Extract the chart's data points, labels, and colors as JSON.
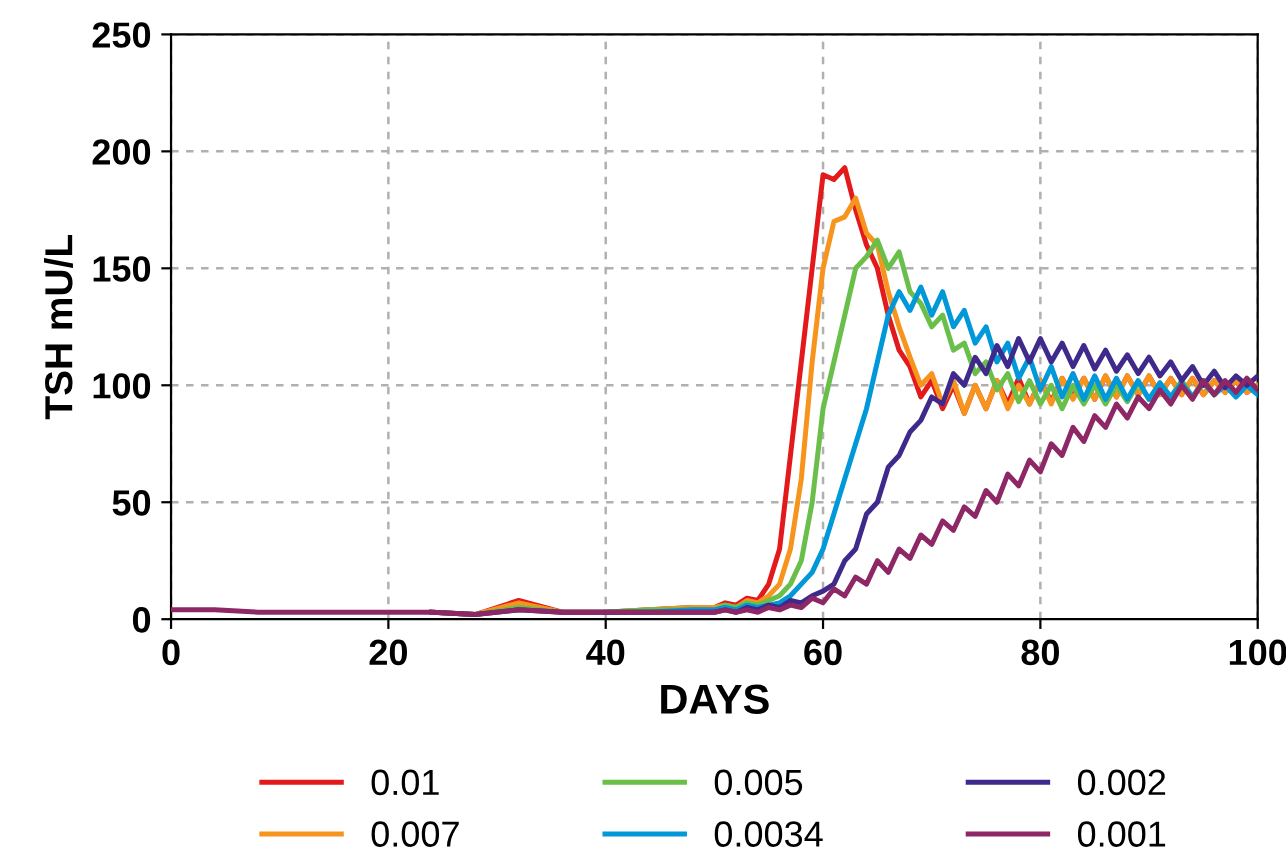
{
  "chart_data": {
    "type": "line",
    "xlabel": "DAYS",
    "ylabel": "TSH mU/L",
    "x": [
      0,
      4,
      8,
      12,
      16,
      20,
      24,
      28,
      32,
      36,
      40,
      44,
      48,
      50,
      51,
      52,
      53,
      54,
      55,
      56,
      57,
      58,
      59,
      60,
      61,
      62,
      63,
      64,
      65,
      66,
      67,
      68,
      69,
      70,
      71,
      72,
      73,
      74,
      75,
      76,
      77,
      78,
      79,
      80,
      81,
      82,
      83,
      84,
      85,
      86,
      87,
      88,
      89,
      90,
      91,
      92,
      93,
      94,
      95,
      96,
      97,
      98,
      99,
      100
    ],
    "xlim": [
      0,
      100
    ],
    "xticks": [
      0,
      20,
      40,
      60,
      80,
      100
    ],
    "ylim": [
      0,
      250
    ],
    "yticks": [
      0,
      50,
      100,
      150,
      200,
      250
    ],
    "grid": true,
    "legend": "bottom",
    "marker": "none",
    "line_style": "solid",
    "series": [
      {
        "name": "0.01",
        "color": "#e31a1c",
        "values": [
          null,
          null,
          null,
          null,
          null,
          null,
          3,
          2,
          8,
          3,
          3,
          4,
          5,
          5,
          7,
          6,
          9,
          8,
          15,
          30,
          70,
          110,
          150,
          190,
          188,
          193,
          175,
          160,
          150,
          130,
          115,
          108,
          95,
          102,
          90,
          100,
          88,
          100,
          90,
          102,
          92,
          103,
          92,
          102,
          93,
          103,
          95,
          103,
          94,
          104,
          95,
          104,
          96,
          104,
          96,
          103,
          96,
          103,
          96,
          102,
          97,
          102,
          97,
          100
        ]
      },
      {
        "name": "0.007",
        "color": "#f7941d",
        "values": [
          null,
          null,
          null,
          null,
          null,
          null,
          3,
          2,
          7,
          3,
          3,
          4,
          5,
          5,
          6,
          5,
          8,
          7,
          10,
          15,
          30,
          60,
          110,
          150,
          170,
          172,
          180,
          165,
          160,
          140,
          125,
          112,
          100,
          105,
          92,
          102,
          88,
          100,
          90,
          102,
          90,
          100,
          92,
          102,
          92,
          103,
          94,
          103,
          94,
          104,
          95,
          104,
          96,
          104,
          96,
          103,
          96,
          103,
          96,
          102,
          97,
          102,
          97,
          100
        ]
      },
      {
        "name": "0.005",
        "color": "#6abf4b",
        "values": [
          null,
          null,
          null,
          null,
          null,
          null,
          3,
          2,
          5,
          3,
          3,
          4,
          4,
          4,
          6,
          5,
          7,
          6,
          8,
          10,
          15,
          25,
          50,
          90,
          110,
          130,
          150,
          155,
          162,
          150,
          157,
          140,
          135,
          125,
          130,
          115,
          118,
          105,
          110,
          98,
          105,
          93,
          102,
          92,
          100,
          90,
          100,
          92,
          100,
          92,
          100,
          93,
          101,
          94,
          101,
          95,
          102,
          95,
          102,
          96,
          null,
          null,
          null,
          null
        ]
      },
      {
        "name": "0.0034",
        "color": "#0098d8",
        "values": [
          null,
          null,
          null,
          null,
          null,
          null,
          null,
          null,
          null,
          null,
          3,
          3,
          4,
          4,
          5,
          4,
          6,
          5,
          6,
          7,
          10,
          15,
          20,
          30,
          45,
          60,
          75,
          90,
          110,
          130,
          140,
          132,
          142,
          130,
          140,
          125,
          132,
          118,
          125,
          110,
          118,
          103,
          112,
          98,
          108,
          95,
          105,
          94,
          104,
          94,
          103,
          94,
          102,
          94,
          101,
          95,
          101,
          95,
          101,
          96,
          100,
          95,
          100,
          96
        ]
      },
      {
        "name": "0.002",
        "color": "#3f2a8c",
        "values": [
          null,
          null,
          null,
          null,
          null,
          null,
          3,
          2,
          4,
          3,
          3,
          3,
          3,
          3,
          4,
          3,
          5,
          4,
          6,
          5,
          8,
          7,
          10,
          12,
          15,
          25,
          30,
          45,
          50,
          65,
          70,
          80,
          85,
          95,
          92,
          105,
          100,
          112,
          105,
          117,
          108,
          120,
          110,
          120,
          110,
          118,
          108,
          117,
          107,
          115,
          106,
          113,
          105,
          112,
          104,
          110,
          102,
          108,
          100,
          106,
          99,
          104,
          100,
          104
        ]
      },
      {
        "name": "0.001",
        "color": "#8e2766",
        "values": [
          4,
          4,
          3,
          3,
          3,
          3,
          3,
          2,
          4,
          3,
          3,
          3,
          3,
          3,
          4,
          3,
          4,
          3,
          5,
          4,
          6,
          5,
          9,
          7,
          13,
          10,
          18,
          15,
          25,
          20,
          30,
          26,
          36,
          32,
          42,
          38,
          48,
          44,
          55,
          50,
          62,
          57,
          68,
          63,
          75,
          70,
          82,
          76,
          87,
          82,
          92,
          86,
          95,
          90,
          98,
          92,
          100,
          94,
          102,
          96,
          102,
          97,
          103,
          98
        ]
      }
    ]
  }
}
